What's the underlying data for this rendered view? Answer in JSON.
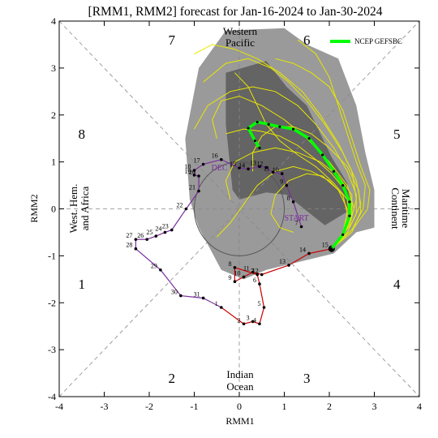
{
  "title": "[RMM1, RMM2] forecast for Jan-16-2024 to Jan-30-2024",
  "legend": {
    "label": "NCEP GEFSBC",
    "color": "#00ff00"
  },
  "colors": {
    "observed_early": "#7b2f9e",
    "observed_late": "#cc0000",
    "ensemble": "#e8e800",
    "mean": "#00ff00",
    "spread_outer": "#9a9a9a",
    "spread_inner": "#5a5a5a",
    "ring": "#555555"
  },
  "labels": {
    "start": "START",
    "dec": "DEC",
    "western_pacific_1": "Western",
    "western_pacific_2": "Pacific",
    "indian_ocean_1": "Indian",
    "indian_ocean_2": "Ocean",
    "maritime_1": "Maritime",
    "maritime_2": "Continent",
    "whem_1": "West. Hem.",
    "whem_2": "and Africa"
  },
  "chart_data": {
    "type": "scatter",
    "title": "[RMM1, RMM2] forecast for Jan-16-2024 to Jan-30-2024",
    "xlabel": "RMM1",
    "ylabel": "RMM2",
    "xlim": [
      -4,
      4
    ],
    "ylim": [
      -4,
      4
    ],
    "xticks": [
      -4,
      -3,
      -2,
      -1,
      0,
      1,
      2,
      3,
      4
    ],
    "yticks": [
      -4,
      -3,
      -2,
      -1,
      0,
      1,
      2,
      3,
      4
    ],
    "phase_numbers": [
      {
        "label": "1",
        "x": -3.5,
        "y": -1.6
      },
      {
        "label": "2",
        "x": -1.5,
        "y": -3.6
      },
      {
        "label": "3",
        "x": 1.5,
        "y": -3.6
      },
      {
        "label": "4",
        "x": 3.5,
        "y": -1.6
      },
      {
        "label": "5",
        "x": 3.5,
        "y": 1.6
      },
      {
        "label": "6",
        "x": 1.5,
        "y": 3.6
      },
      {
        "label": "7",
        "x": -1.5,
        "y": 3.6
      },
      {
        "label": "8",
        "x": -3.5,
        "y": 1.6
      }
    ],
    "observed_dec": {
      "name": "DEC",
      "points": [
        {
          "day": "7",
          "x": 1.38,
          "y": -0.38
        },
        {
          "day": "8",
          "x": 1.2,
          "y": 0.15
        },
        {
          "day": "9",
          "x": 1.05,
          "y": 0.5
        },
        {
          "day": "10",
          "x": 0.95,
          "y": 0.75
        },
        {
          "day": "11",
          "x": 0.75,
          "y": 0.78
        },
        {
          "day": "12",
          "x": 0.6,
          "y": 0.88
        },
        {
          "day": "13",
          "x": 0.45,
          "y": 0.9
        },
        {
          "day": "14",
          "x": 0.2,
          "y": 0.85
        },
        {
          "day": "15",
          "x": 0.0,
          "y": 0.87
        },
        {
          "day": "16",
          "x": -0.4,
          "y": 1.05
        },
        {
          "day": "17",
          "x": -0.8,
          "y": 0.95
        },
        {
          "day": "18",
          "x": -1.0,
          "y": 0.82
        },
        {
          "day": "19",
          "x": -1.0,
          "y": 0.72
        },
        {
          "day": "20",
          "x": -0.9,
          "y": 0.7
        },
        {
          "day": "21",
          "x": -0.9,
          "y": 0.38
        },
        {
          "day": "22",
          "x": -1.18,
          "y": 0.0
        },
        {
          "day": "23",
          "x": -1.5,
          "y": -0.45
        },
        {
          "day": "24",
          "x": -1.65,
          "y": -0.5
        },
        {
          "day": "25",
          "x": -1.85,
          "y": -0.58
        },
        {
          "day": "26",
          "x": -2.05,
          "y": -0.65
        },
        {
          "day": "27",
          "x": -2.3,
          "y": -0.65
        },
        {
          "day": "28",
          "x": -2.3,
          "y": -0.85
        },
        {
          "day": "29",
          "x": -1.75,
          "y": -1.3
        },
        {
          "day": "30",
          "x": -1.3,
          "y": -1.85
        },
        {
          "day": "31",
          "x": -0.8,
          "y": -1.9
        }
      ]
    },
    "observed_jan": {
      "name": "JAN",
      "points": [
        {
          "day": "1",
          "x": -0.4,
          "y": -2.1
        },
        {
          "day": "2",
          "x": 0.1,
          "y": -2.45
        },
        {
          "day": "3",
          "x": 0.3,
          "y": -2.4
        },
        {
          "day": "4",
          "x": 0.45,
          "y": -2.45
        },
        {
          "day": "5",
          "x": 0.55,
          "y": -2.1
        },
        {
          "day": "6",
          "x": 0.45,
          "y": -1.6
        },
        {
          "day": "7",
          "x": 0.4,
          "y": -1.4
        },
        {
          "day": "8",
          "x": -0.1,
          "y": -1.25
        },
        {
          "day": "9",
          "x": -0.1,
          "y": -1.55
        },
        {
          "day": "10",
          "x": 0.1,
          "y": -1.45
        },
        {
          "day": "11",
          "x": 0.3,
          "y": -1.35
        },
        {
          "day": "12",
          "x": 0.5,
          "y": -1.4
        },
        {
          "day": "13",
          "x": 1.1,
          "y": -1.2
        },
        {
          "day": "14",
          "x": 1.55,
          "y": -0.95
        },
        {
          "day": "15",
          "x": 2.05,
          "y": -0.85
        }
      ]
    },
    "ensemble_mean": {
      "name": "NCEP GEFSBC",
      "points": [
        {
          "x": 2.05,
          "y": -0.85
        },
        {
          "x": 2.3,
          "y": -0.55
        },
        {
          "x": 2.45,
          "y": -0.15
        },
        {
          "x": 2.45,
          "y": 0.15
        },
        {
          "x": 2.3,
          "y": 0.5
        },
        {
          "x": 2.1,
          "y": 0.8
        },
        {
          "x": 1.85,
          "y": 1.15
        },
        {
          "x": 1.55,
          "y": 1.5
        },
        {
          "x": 1.2,
          "y": 1.7
        },
        {
          "x": 0.9,
          "y": 1.75
        },
        {
          "x": 0.65,
          "y": 1.8
        },
        {
          "x": 0.4,
          "y": 1.85
        },
        {
          "x": 0.2,
          "y": 1.72
        },
        {
          "x": 0.35,
          "y": 1.45
        },
        {
          "x": 0.45,
          "y": 1.3
        }
      ]
    },
    "ensemble_members": [
      [
        [
          2.05,
          -0.85
        ],
        [
          2.5,
          -0.3
        ],
        [
          2.7,
          0.1
        ],
        [
          2.6,
          0.6
        ],
        [
          2.3,
          1.2
        ],
        [
          1.9,
          1.8
        ],
        [
          1.5,
          2.3
        ],
        [
          1.1,
          2.7
        ],
        [
          0.7,
          3.0
        ],
        [
          0.2,
          3.2
        ],
        [
          -0.3,
          3.1
        ],
        [
          -0.8,
          2.7
        ]
      ],
      [
        [
          2.05,
          -0.85
        ],
        [
          2.4,
          -0.4
        ],
        [
          2.55,
          0.0
        ],
        [
          2.4,
          0.5
        ],
        [
          2.0,
          1.0
        ],
        [
          1.5,
          1.5
        ],
        [
          1.0,
          1.9
        ],
        [
          0.5,
          2.2
        ],
        [
          0.0,
          2.4
        ],
        [
          -0.4,
          2.3
        ],
        [
          -0.6,
          1.9
        ],
        [
          -0.5,
          1.5
        ]
      ],
      [
        [
          2.05,
          -0.85
        ],
        [
          2.35,
          -0.5
        ],
        [
          2.5,
          -0.1
        ],
        [
          2.5,
          0.3
        ],
        [
          2.2,
          0.7
        ],
        [
          1.8,
          1.0
        ],
        [
          1.3,
          1.2
        ],
        [
          0.8,
          1.3
        ],
        [
          0.3,
          1.2
        ],
        [
          -0.1,
          1.0
        ],
        [
          -0.3,
          0.6
        ],
        [
          -0.2,
          0.2
        ]
      ],
      [
        [
          2.05,
          -0.85
        ],
        [
          2.5,
          -0.45
        ],
        [
          2.75,
          0.0
        ],
        [
          2.8,
          0.5
        ],
        [
          2.6,
          1.0
        ],
        [
          2.4,
          1.6
        ],
        [
          2.2,
          2.2
        ],
        [
          2.0,
          2.8
        ],
        [
          1.7,
          3.3
        ],
        [
          1.3,
          3.6
        ]
      ],
      [
        [
          2.05,
          -0.85
        ],
        [
          2.3,
          -0.5
        ],
        [
          2.4,
          -0.1
        ],
        [
          2.3,
          0.3
        ],
        [
          2.0,
          0.6
        ],
        [
          1.6,
          0.8
        ],
        [
          1.2,
          0.9
        ],
        [
          0.8,
          0.8
        ],
        [
          0.4,
          0.5
        ],
        [
          0.1,
          0.1
        ],
        [
          -0.2,
          -0.3
        ],
        [
          -0.5,
          -0.6
        ]
      ],
      [
        [
          2.05,
          -0.85
        ],
        [
          2.45,
          -0.35
        ],
        [
          2.6,
          0.2
        ],
        [
          2.5,
          0.8
        ],
        [
          2.2,
          1.4
        ],
        [
          1.8,
          2.0
        ],
        [
          1.4,
          2.5
        ],
        [
          0.9,
          2.9
        ],
        [
          0.4,
          3.2
        ],
        [
          -0.1,
          3.4
        ],
        [
          -0.6,
          3.5
        ],
        [
          -1.0,
          3.3
        ]
      ],
      [
        [
          2.05,
          -0.85
        ],
        [
          2.3,
          -0.6
        ],
        [
          2.45,
          -0.25
        ],
        [
          2.5,
          0.1
        ],
        [
          2.35,
          0.4
        ],
        [
          2.05,
          0.75
        ],
        [
          1.7,
          1.05
        ],
        [
          1.3,
          1.35
        ],
        [
          0.9,
          1.55
        ],
        [
          0.5,
          1.65
        ],
        [
          0.1,
          1.7
        ],
        [
          -0.3,
          1.6
        ]
      ],
      [
        [
          2.05,
          -0.85
        ],
        [
          2.55,
          -0.4
        ],
        [
          2.85,
          0.0
        ],
        [
          2.9,
          0.4
        ],
        [
          2.7,
          0.9
        ],
        [
          2.5,
          1.5
        ],
        [
          2.3,
          2.1
        ],
        [
          2.0,
          2.6
        ],
        [
          1.6,
          2.9
        ],
        [
          1.2,
          3.1
        ],
        [
          0.8,
          3.2
        ]
      ],
      [
        [
          2.05,
          -0.85
        ],
        [
          2.35,
          -0.45
        ],
        [
          2.4,
          0.0
        ],
        [
          2.2,
          0.4
        ],
        [
          1.85,
          0.7
        ],
        [
          1.5,
          0.75
        ],
        [
          1.1,
          0.6
        ],
        [
          0.8,
          0.3
        ],
        [
          0.7,
          -0.1
        ],
        [
          0.9,
          -0.4
        ],
        [
          1.2,
          -0.5
        ]
      ],
      [
        [
          2.05,
          -0.85
        ],
        [
          2.4,
          -0.5
        ],
        [
          2.6,
          -0.1
        ],
        [
          2.6,
          0.3
        ],
        [
          2.4,
          0.8
        ],
        [
          2.1,
          1.3
        ],
        [
          1.7,
          1.8
        ],
        [
          1.3,
          2.2
        ],
        [
          0.8,
          2.5
        ],
        [
          0.3,
          2.6
        ],
        [
          -0.2,
          2.5
        ],
        [
          -0.7,
          2.2
        ],
        [
          -1.0,
          1.7
        ]
      ],
      [
        [
          2.05,
          -0.85
        ],
        [
          2.3,
          -0.55
        ],
        [
          2.45,
          -0.2
        ],
        [
          2.4,
          0.2
        ],
        [
          2.1,
          0.55
        ],
        [
          1.7,
          0.9
        ],
        [
          1.3,
          1.15
        ],
        [
          0.9,
          1.45
        ],
        [
          0.6,
          1.8
        ],
        [
          0.4,
          2.2
        ],
        [
          0.2,
          2.6
        ],
        [
          -0.1,
          2.9
        ]
      ],
      [
        [
          2.05,
          -0.85
        ],
        [
          2.5,
          -0.5
        ],
        [
          2.7,
          -0.05
        ],
        [
          2.65,
          0.4
        ],
        [
          2.4,
          0.9
        ],
        [
          2.0,
          1.3
        ],
        [
          1.6,
          1.6
        ],
        [
          1.2,
          1.75
        ],
        [
          0.8,
          1.75
        ],
        [
          0.5,
          1.55
        ],
        [
          0.3,
          1.2
        ],
        [
          0.3,
          0.8
        ]
      ]
    ],
    "spread_outer": [
      [
        -0.9,
        3.0
      ],
      [
        -0.3,
        3.8
      ],
      [
        1.0,
        3.85
      ],
      [
        1.5,
        3.5
      ],
      [
        2.2,
        3.2
      ],
      [
        2.6,
        2.2
      ],
      [
        2.8,
        1.2
      ],
      [
        3.0,
        0.4
      ],
      [
        3.0,
        -0.4
      ],
      [
        2.6,
        -0.5
      ],
      [
        2.1,
        -0.95
      ],
      [
        0.6,
        -1.3
      ],
      [
        0.1,
        -1.5
      ],
      [
        -0.4,
        -1.3
      ],
      [
        -0.9,
        -0.4
      ],
      [
        -1.1,
        0.2
      ],
      [
        -1.2,
        1.5
      ],
      [
        -0.9,
        3.0
      ]
    ],
    "spread_inner": [
      [
        -0.3,
        2.9
      ],
      [
        0.6,
        3.15
      ],
      [
        1.05,
        2.6
      ],
      [
        1.5,
        2.2
      ],
      [
        2.05,
        1.1
      ],
      [
        2.4,
        0.55
      ],
      [
        2.5,
        0.0
      ],
      [
        1.9,
        -0.35
      ],
      [
        1.05,
        0.3
      ],
      [
        0.6,
        0.35
      ],
      [
        0.0,
        0.2
      ],
      [
        -0.15,
        0.4
      ],
      [
        -0.3,
        1.8
      ],
      [
        -0.3,
        2.9
      ]
    ],
    "grid": true
  }
}
